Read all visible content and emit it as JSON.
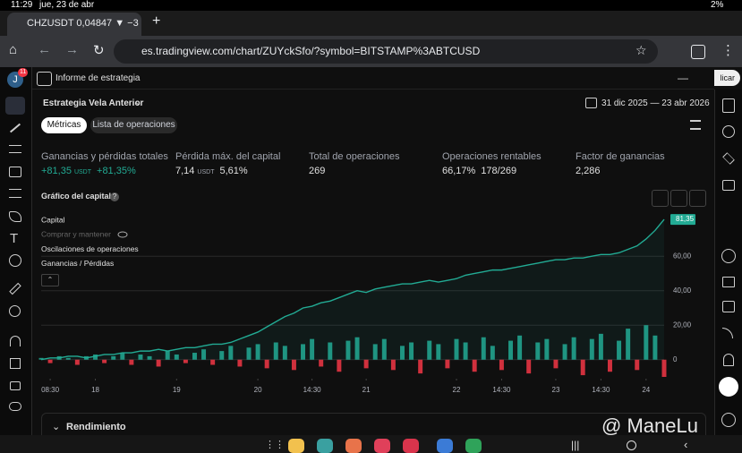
{
  "status_bar": {
    "time": "11:29",
    "date": "jue, 23 de abr",
    "battery": "2%"
  },
  "browser": {
    "tab_title": "CHZUSDT 0,04847 ▼ −3",
    "url": "es.tradingview.com/chart/ZUYckSfo/?symbol=BITSTAMP%3ABTCUSD"
  },
  "sidebar": {
    "avatar": "J",
    "badge": "11"
  },
  "panel": {
    "title": "Informe de estrategia",
    "apply_button": "licar",
    "strategy": "Estrategia Vela Anterior",
    "date_range": "31 dic 2025 — 23 abr 2026",
    "tabs": [
      "Métricas",
      "Lista de operaciones"
    ]
  },
  "metrics": [
    {
      "label": "Ganancias y pérdidas totales",
      "value": "+81,35",
      "unit": "USDT",
      "percent": "+81,35%"
    },
    {
      "label": "Pérdida máx. del capital",
      "value": "7,14",
      "unit": "USDT",
      "percent": "5,61%"
    },
    {
      "label": "Total de operaciones",
      "value": "269"
    },
    {
      "label": "Operaciones rentables",
      "value": "66,17%",
      "percent": "178/269"
    },
    {
      "label": "Factor de ganancias",
      "value": "2,286"
    }
  ],
  "chart_data": {
    "type": "line",
    "title": "Gráfico del capital",
    "series": [
      {
        "name": "Capital",
        "color": "#22ab94",
        "values": [
          0,
          1,
          1,
          2,
          2,
          1,
          2,
          3,
          3,
          4,
          4,
          5,
          5,
          6,
          5,
          6,
          7,
          7,
          8,
          9,
          9,
          10,
          12,
          14,
          16,
          19,
          22,
          25,
          27,
          30,
          31,
          33,
          34,
          36,
          38,
          40,
          39,
          41,
          42,
          43,
          44,
          44,
          45,
          46,
          45,
          46,
          47,
          49,
          50,
          51,
          52,
          52,
          53,
          54,
          55,
          56,
          57,
          58,
          58,
          59,
          59,
          60,
          61,
          61,
          62,
          64,
          66,
          70,
          75,
          81.35
        ]
      },
      {
        "name": "Oscilaciones de operaciones",
        "color": "#22ab94",
        "negative_color": "#f23645",
        "values": [
          1,
          -2,
          2,
          1,
          -3,
          2,
          3,
          -2,
          2,
          4,
          -3,
          3,
          2,
          -4,
          5,
          3,
          -2,
          4,
          6,
          -3,
          5,
          8,
          -4,
          7,
          9,
          -5,
          10,
          8,
          -6,
          9,
          12,
          -4,
          10,
          -7,
          11,
          13,
          -5,
          9,
          12,
          -6,
          8,
          10,
          -8,
          11,
          9,
          -5,
          12,
          10,
          -7,
          13,
          8,
          -6,
          11,
          14,
          -8,
          10,
          12,
          -5,
          9,
          13,
          -9,
          12,
          15,
          -7,
          11,
          18,
          -6,
          20,
          14,
          -10
        ]
      }
    ],
    "hidden_legend": [
      "Comprar y mantener",
      "Ganancias / Pérdidas"
    ],
    "current_value_label": "81,35",
    "xlim": [
      0,
      69
    ],
    "xticks": [
      {
        "value": 1,
        "label": "08:30"
      },
      {
        "value": 6,
        "label": "18"
      },
      {
        "value": 15,
        "label": "19"
      },
      {
        "value": 24,
        "label": "20"
      },
      {
        "value": 30,
        "label": "14:30"
      },
      {
        "value": 36,
        "label": "21"
      },
      {
        "value": 46,
        "label": "22"
      },
      {
        "value": 51,
        "label": "14:30"
      },
      {
        "value": 57,
        "label": "23"
      },
      {
        "value": 62,
        "label": "14:30"
      },
      {
        "value": 67,
        "label": "24"
      }
    ],
    "ylim": [
      -10,
      84
    ],
    "yticks": [
      0,
      {
        "value": 20,
        "label": "20,00"
      },
      {
        "value": 40,
        "label": "40,00"
      },
      {
        "value": 60,
        "label": "60,00"
      }
    ],
    "grid": true
  },
  "section": {
    "title": "Rendimiento"
  },
  "watermark": "@ ManeLu"
}
